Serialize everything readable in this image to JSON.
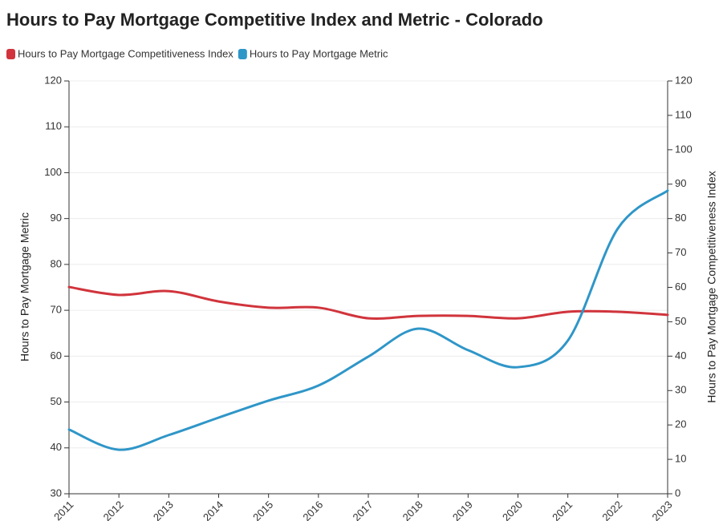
{
  "chart_data": {
    "type": "line",
    "title": "Hours to Pay Mortgage Competitive Index and Metric - Colorado",
    "categories": [
      "2011",
      "2012",
      "2013",
      "2014",
      "2015",
      "2016",
      "2017",
      "2018",
      "2019",
      "2020",
      "2021",
      "2022",
      "2023"
    ],
    "series": [
      {
        "name": "Hours to Pay Mortgage Competitiveness Index",
        "color": "#d1343c",
        "axis": "y2",
        "values": [
          60.1,
          57.8,
          58.9,
          55.9,
          54.1,
          54.1,
          51.0,
          51.7,
          51.7,
          51.0,
          52.9,
          52.9,
          52.0
        ]
      },
      {
        "name": "Hours to Pay Mortgage Metric",
        "color": "#2f96c8",
        "values": [
          44.0,
          39.6,
          42.8,
          46.6,
          50.3,
          53.6,
          59.9,
          66.0,
          61.3,
          57.6,
          63.4,
          87.8,
          96.1
        ]
      }
    ],
    "ylabel": "Hours to Pay Mortgage Metric",
    "y2label": "Hours to Pay Mortgage Competitiveness Index",
    "ylim": [
      30,
      120
    ],
    "yticks": [
      30,
      40,
      50,
      60,
      70,
      80,
      90,
      100,
      110,
      120
    ],
    "y2lim": [
      0,
      120
    ],
    "y2ticks": [
      0,
      10,
      20,
      30,
      40,
      50,
      60,
      70,
      80,
      90,
      100,
      110,
      120
    ],
    "grid": true,
    "legend": "top-left"
  }
}
